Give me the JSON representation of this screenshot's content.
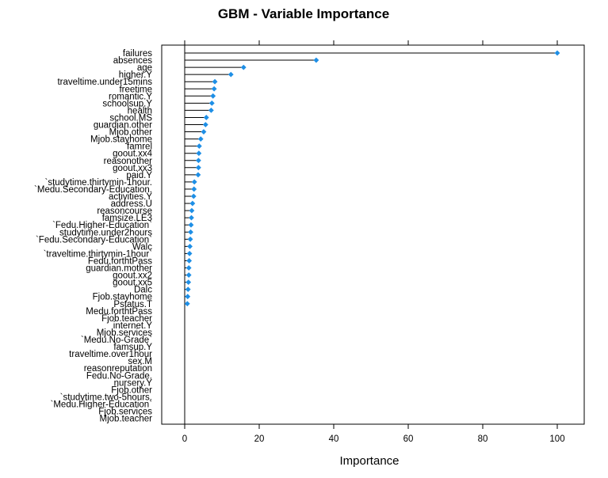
{
  "chart_data": {
    "type": "dot",
    "title": "GBM - Variable Importance",
    "xlabel": "Importance",
    "ylabel": "",
    "xlim": [
      -6,
      107
    ],
    "xticks": [
      0,
      20,
      40,
      60,
      80,
      100
    ],
    "grid": false,
    "orientation": "horizontal",
    "point_color": "#1E8FE6",
    "categories": [
      "failures",
      "absences",
      "age",
      "higher.Y",
      "traveltime.under15mins",
      "freetime",
      "romantic.Y",
      "schoolsup.Y",
      "health",
      "school.MS",
      "guardian.other",
      "Mjob.other",
      "Mjob.stayhome",
      "famrel",
      "goout.xx4",
      "reasonother",
      "goout.xx3",
      "paid.Y",
      "`studytime.thirtymin-1hour.",
      "`Medu.Secondary-Education.",
      "activities.Y",
      "address.U",
      "reasoncourse",
      "famsize.LE3",
      "`Fedu.Higher-Education`",
      "studytime.under2hours",
      "`Fedu.Secondary-Education`",
      "Walc",
      "`traveltime.thirtymin-1hour`",
      "Fedu.forthtPass",
      "guardian.mother",
      "goout.xx2",
      "goout.xx5",
      "Dalc",
      "Fjob.stayhome",
      "Pstatus.T",
      "Medu.forthtPass",
      "Fjob.teacher",
      "internet.Y",
      "Mjob.services",
      "`Medu.No-Grade`",
      "famsup.Y",
      "traveltime.over1hour",
      "sex.M",
      "reasonreputation",
      "Fedu.No-Grade.",
      "nursery.Y",
      "Fjob.other",
      "`studytime.two-5hours.",
      "`Medu.Higher-Education`",
      "Fjob.services",
      "Mjob.teacher"
    ],
    "values": [
      100,
      35.3,
      15.8,
      12.4,
      8.1,
      7.9,
      7.6,
      7.3,
      7.1,
      5.8,
      5.6,
      5.1,
      4.3,
      3.9,
      3.8,
      3.7,
      3.7,
      3.6,
      2.6,
      2.5,
      2.4,
      2.1,
      1.9,
      1.8,
      1.7,
      1.6,
      1.5,
      1.4,
      1.3,
      1.2,
      1.1,
      1.1,
      1.0,
      0.9,
      0.8,
      0.7,
      0,
      0,
      0,
      0,
      0,
      0,
      0,
      0,
      0,
      0,
      0,
      0,
      0,
      0,
      0,
      0
    ]
  }
}
